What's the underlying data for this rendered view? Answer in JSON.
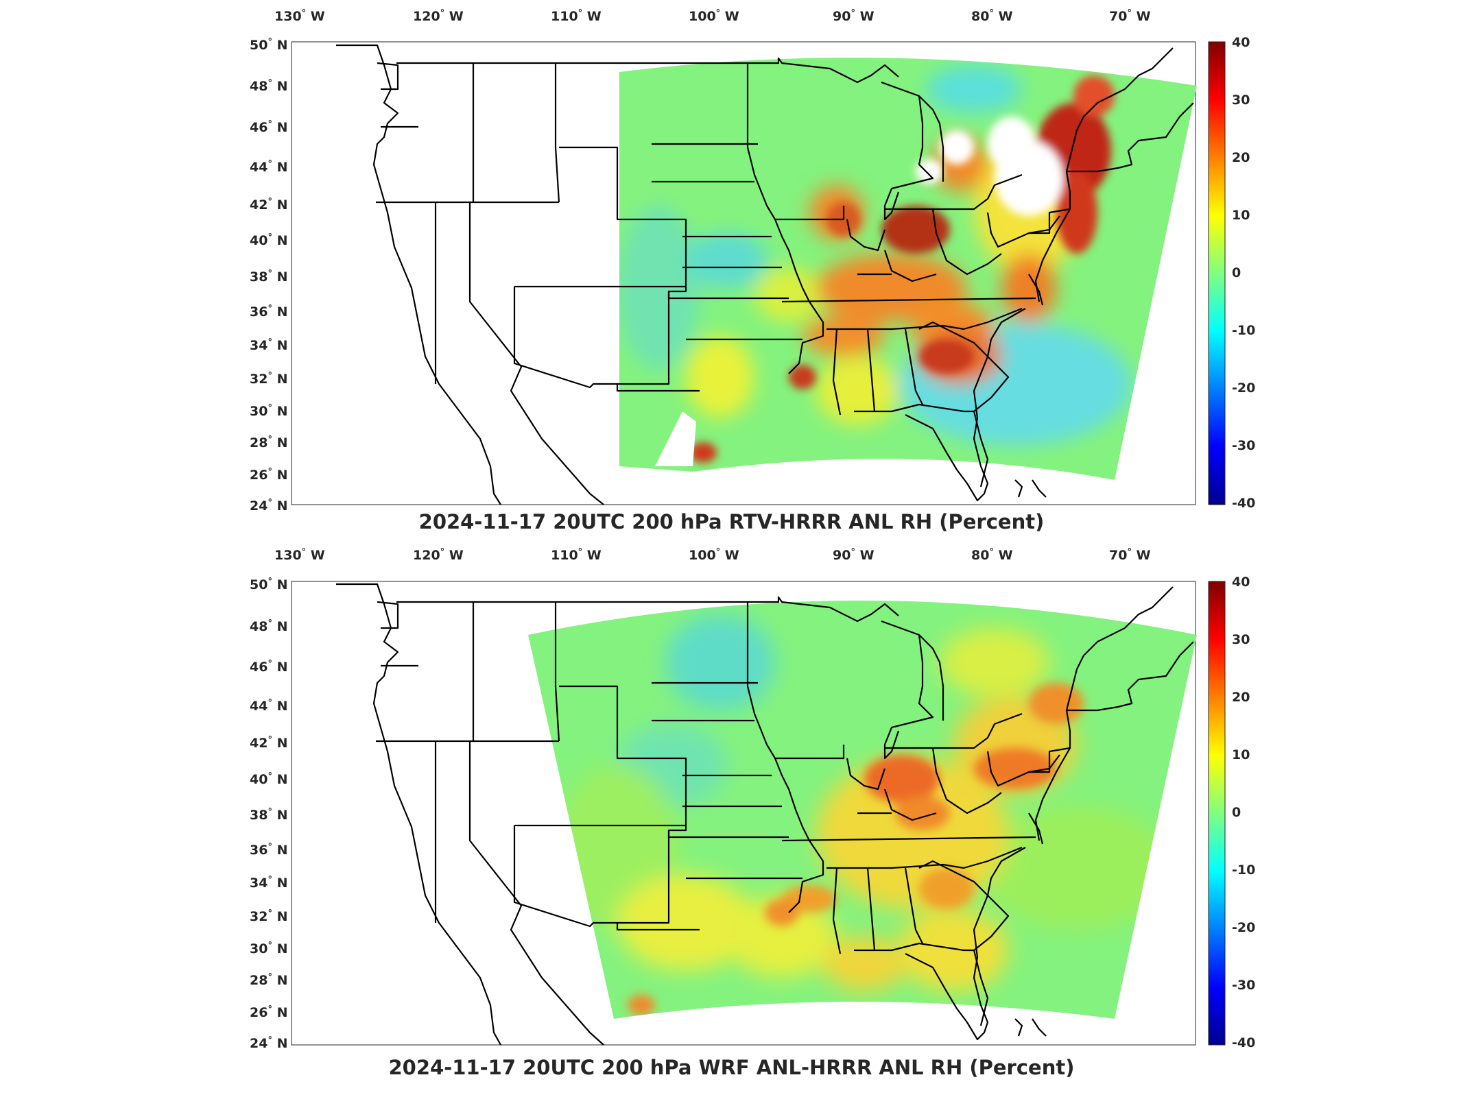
{
  "panels": [
    {
      "title": "2024-11-17 20UTC 200 hPa RTV-HRRR ANL RH (Percent)"
    },
    {
      "title": "2024-11-17 20UTC 200 hPa WRF ANL-HRRR ANL RH (Percent)"
    }
  ],
  "lon_ticks": [
    {
      "value": -130,
      "deg": "130",
      "hem": "W"
    },
    {
      "value": -120,
      "deg": "120",
      "hem": "W"
    },
    {
      "value": -110,
      "deg": "110",
      "hem": "W"
    },
    {
      "value": -100,
      "deg": "100",
      "hem": "W"
    },
    {
      "value": -90,
      "deg": "90",
      "hem": "W"
    },
    {
      "value": -80,
      "deg": "80",
      "hem": "W"
    },
    {
      "value": -70,
      "deg": "70",
      "hem": "W"
    }
  ],
  "lat_ticks": [
    {
      "value": 50,
      "deg": "50",
      "hem": "N"
    },
    {
      "value": 48,
      "deg": "48",
      "hem": "N"
    },
    {
      "value": 46,
      "deg": "46",
      "hem": "N"
    },
    {
      "value": 44,
      "deg": "44",
      "hem": "N"
    },
    {
      "value": 42,
      "deg": "42",
      "hem": "N"
    },
    {
      "value": 40,
      "deg": "40",
      "hem": "N"
    },
    {
      "value": 38,
      "deg": "38",
      "hem": "N"
    },
    {
      "value": 36,
      "deg": "36",
      "hem": "N"
    },
    {
      "value": 34,
      "deg": "34",
      "hem": "N"
    },
    {
      "value": 32,
      "deg": "32",
      "hem": "N"
    },
    {
      "value": 30,
      "deg": "30",
      "hem": "N"
    },
    {
      "value": 28,
      "deg": "28",
      "hem": "N"
    },
    {
      "value": 26,
      "deg": "26",
      "hem": "N"
    },
    {
      "value": 24,
      "deg": "24",
      "hem": "N"
    }
  ],
  "colorbar": {
    "ticks": [
      "40",
      "30",
      "20",
      "10",
      "0",
      "-10",
      "-20",
      "-30",
      "-40"
    ],
    "range": [
      -40,
      40
    ],
    "colors": [
      "#00008f",
      "#0000ff",
      "#0080ff",
      "#00ffff",
      "#80ff80",
      "#ffff00",
      "#ff8000",
      "#ff0000",
      "#800000"
    ]
  },
  "colors": {
    "background_field": "#84f27e",
    "coastline": "#000000"
  }
}
